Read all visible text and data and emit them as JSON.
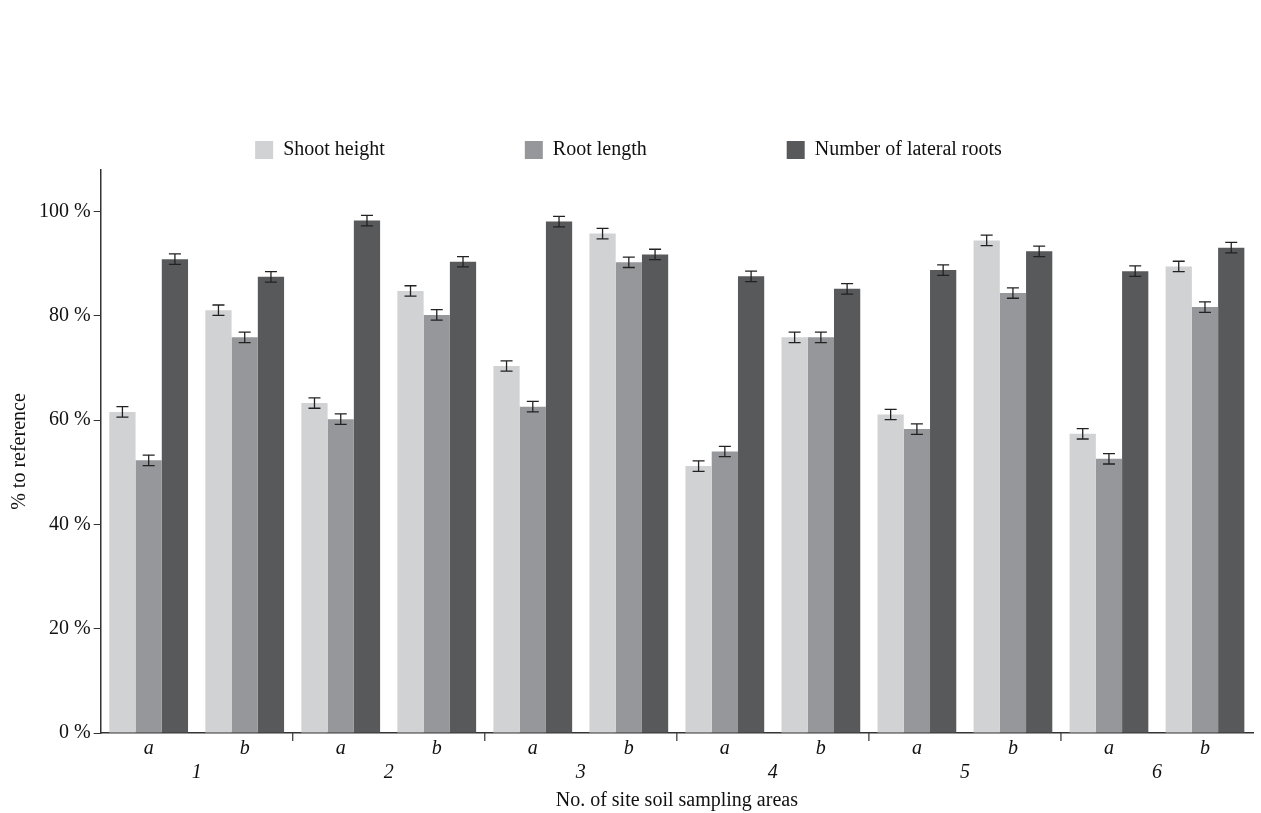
{
  "chart_data": {
    "type": "bar",
    "xlabel": "No. of site soil sampling areas",
    "ylabel": "% to reference",
    "categories": [
      "a",
      "b",
      "a",
      "b",
      "a",
      "b",
      "a",
      "b",
      "a",
      "b",
      "a",
      "b"
    ],
    "annotations": [
      "1",
      "2",
      "3",
      "4",
      "5",
      "6"
    ],
    "series": [
      {
        "name": "Shoot height",
        "color": "#d1d2d4",
        "values": [
          61.6,
          81.1,
          63.3,
          84.8,
          70.4,
          95.8,
          51.2,
          75.9,
          61.1,
          94.5,
          57.4,
          89.5
        ],
        "errors": [
          1,
          1,
          1,
          1,
          1,
          1,
          1,
          1,
          1,
          1,
          1,
          1
        ]
      },
      {
        "name": "Root length",
        "color": "#96979a",
        "values": [
          52.3,
          75.9,
          60.2,
          80.2,
          62.6,
          90.3,
          54.0,
          75.9,
          58.3,
          84.4,
          52.6,
          81.7
        ],
        "errors": [
          1,
          1,
          1,
          1,
          1,
          1,
          1,
          1,
          1,
          1,
          1,
          1
        ]
      },
      {
        "name": "Number of lateral roots",
        "color": "#58595b",
        "values": [
          90.9,
          87.5,
          98.3,
          90.4,
          98.1,
          91.8,
          87.6,
          85.2,
          88.8,
          92.4,
          88.6,
          93.1
        ],
        "errors": [
          1,
          1,
          1,
          1,
          1,
          1,
          1,
          1,
          1,
          1,
          1,
          1
        ]
      }
    ],
    "ylim": [
      0,
      108
    ],
    "yticks": [
      {
        "value": 0,
        "label": "0 %"
      },
      {
        "value": 20,
        "label": "20 %"
      },
      {
        "value": 40,
        "label": "40 %"
      },
      {
        "value": 60,
        "label": "60 %"
      },
      {
        "value": 80,
        "label": "80 %"
      },
      {
        "value": 100,
        "label": "100 %"
      }
    ],
    "grid": false,
    "legend": "top"
  }
}
